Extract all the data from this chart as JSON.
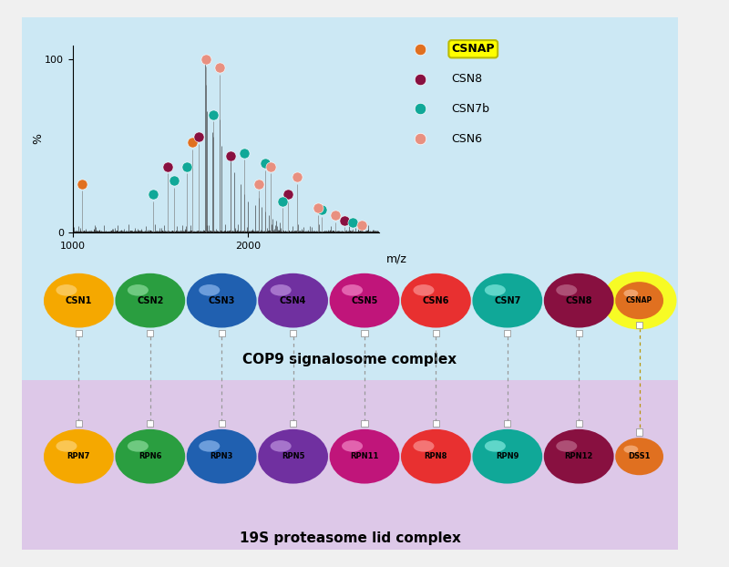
{
  "fig_width": 8.0,
  "fig_height": 6.22,
  "bg_color": "#f0f0f0",
  "top_panel_bg": "#cce8f4",
  "bottom_panel_bg": "#ddc8e8",
  "csn_subunits": [
    "CSN1",
    "CSN2",
    "CSN3",
    "CSN4",
    "CSN5",
    "CSN6",
    "CSN7",
    "CSN8",
    "CSNAP"
  ],
  "csn_colors": [
    "#f5a800",
    "#2a9e40",
    "#2060b0",
    "#7030a0",
    "#c0157a",
    "#e83030",
    "#10a898",
    "#881040",
    "#e07020"
  ],
  "csn_is_large": [
    true,
    true,
    true,
    true,
    true,
    true,
    true,
    true,
    false
  ],
  "rpn_subunits": [
    "RPN7",
    "RPN6",
    "RPN3",
    "RPN5",
    "RPN11",
    "RPN8",
    "RPN9",
    "RPN12",
    "DSS1"
  ],
  "rpn_colors": [
    "#f5a800",
    "#2a9e40",
    "#2060b0",
    "#7030a0",
    "#c0157a",
    "#e83030",
    "#10a898",
    "#881040",
    "#e07020"
  ],
  "rpn_is_large": [
    true,
    true,
    true,
    true,
    true,
    true,
    true,
    true,
    false
  ],
  "legend_labels": [
    "CSNAP",
    "CSN8",
    "CSN7b",
    "CSN6"
  ],
  "legend_colors": [
    "#e07020",
    "#881040",
    "#10a898",
    "#e89080"
  ],
  "csnap_dot_color": "#e07020",
  "csn8_dot_color": "#881040",
  "csn7b_dot_color": "#10a898",
  "csn6_dot_color": "#e89080",
  "dots": [
    [
      1050,
      28,
      "csnap"
    ],
    [
      1680,
      52,
      "csnap"
    ],
    [
      1540,
      38,
      "csn8"
    ],
    [
      1720,
      55,
      "csn8"
    ],
    [
      1900,
      44,
      "csn8"
    ],
    [
      2230,
      22,
      "csn8"
    ],
    [
      2550,
      7,
      "csn8"
    ],
    [
      1460,
      22,
      "csn7b"
    ],
    [
      1580,
      30,
      "csn7b"
    ],
    [
      1650,
      38,
      "csn7b"
    ],
    [
      1800,
      68,
      "csn7b"
    ],
    [
      1980,
      46,
      "csn7b"
    ],
    [
      2100,
      40,
      "csn7b"
    ],
    [
      2200,
      18,
      "csn7b"
    ],
    [
      2420,
      13,
      "csn7b"
    ],
    [
      2600,
      6,
      "csn7b"
    ],
    [
      1760,
      100,
      "csn6"
    ],
    [
      1840,
      95,
      "csn6"
    ],
    [
      2060,
      28,
      "csn6"
    ],
    [
      2130,
      38,
      "csn6"
    ],
    [
      2280,
      32,
      "csn6"
    ],
    [
      2400,
      14,
      "csn6"
    ],
    [
      2500,
      10,
      "csn6"
    ],
    [
      2650,
      4,
      "csn6"
    ]
  ],
  "top_panel_title": "COP9 signalosome complex",
  "bottom_panel_title": "19S proteasome lid complex",
  "xmin": 1000,
  "xmax": 2750,
  "ymin": 0,
  "ymax": 100
}
